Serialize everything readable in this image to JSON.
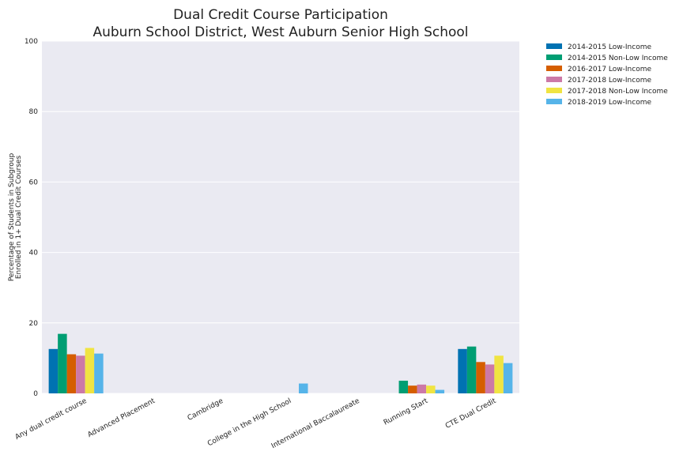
{
  "chart_data": {
    "type": "bar",
    "title": [
      "Dual Credit Course Participation",
      "Auburn School District, West Auburn Senior High School"
    ],
    "ylabel": [
      "Percentage of Students in Subgroup",
      "Enrolled in 1+ Dual Credit Courses"
    ],
    "xlabel": "",
    "ylim": [
      0,
      100
    ],
    "yticks": [
      "0",
      "20",
      "40",
      "60",
      "80",
      "100"
    ],
    "grid": true,
    "legend_position": "outside-top-right",
    "categories": [
      "Any dual credit course",
      "Advanced Placement",
      "Cambridge",
      "College in the High School",
      "International Baccalaureate",
      "Running Start",
      "CTE Dual Credit"
    ],
    "series": [
      {
        "name": "2014-2015 Low-Income",
        "color": "#0072b2",
        "values": [
          12.6,
          null,
          null,
          null,
          null,
          null,
          12.6
        ]
      },
      {
        "name": "2014-2015 Non-Low Income",
        "color": "#009e73",
        "values": [
          16.9,
          null,
          null,
          null,
          null,
          3.6,
          13.3
        ]
      },
      {
        "name": "2016-2017 Low-Income",
        "color": "#d55e00",
        "values": [
          11.1,
          null,
          null,
          null,
          null,
          2.2,
          8.9
        ]
      },
      {
        "name": "2017-2018 Low-Income",
        "color": "#cc79a7",
        "values": [
          10.7,
          null,
          null,
          null,
          null,
          2.5,
          8.2
        ]
      },
      {
        "name": "2017-2018 Non-Low Income",
        "color": "#f0e442",
        "values": [
          12.9,
          null,
          null,
          null,
          null,
          2.2,
          10.7
        ]
      },
      {
        "name": "2018-2019 Low-Income",
        "color": "#56b4e9",
        "values": [
          11.3,
          null,
          null,
          2.8,
          null,
          1.0,
          8.6
        ]
      }
    ]
  }
}
